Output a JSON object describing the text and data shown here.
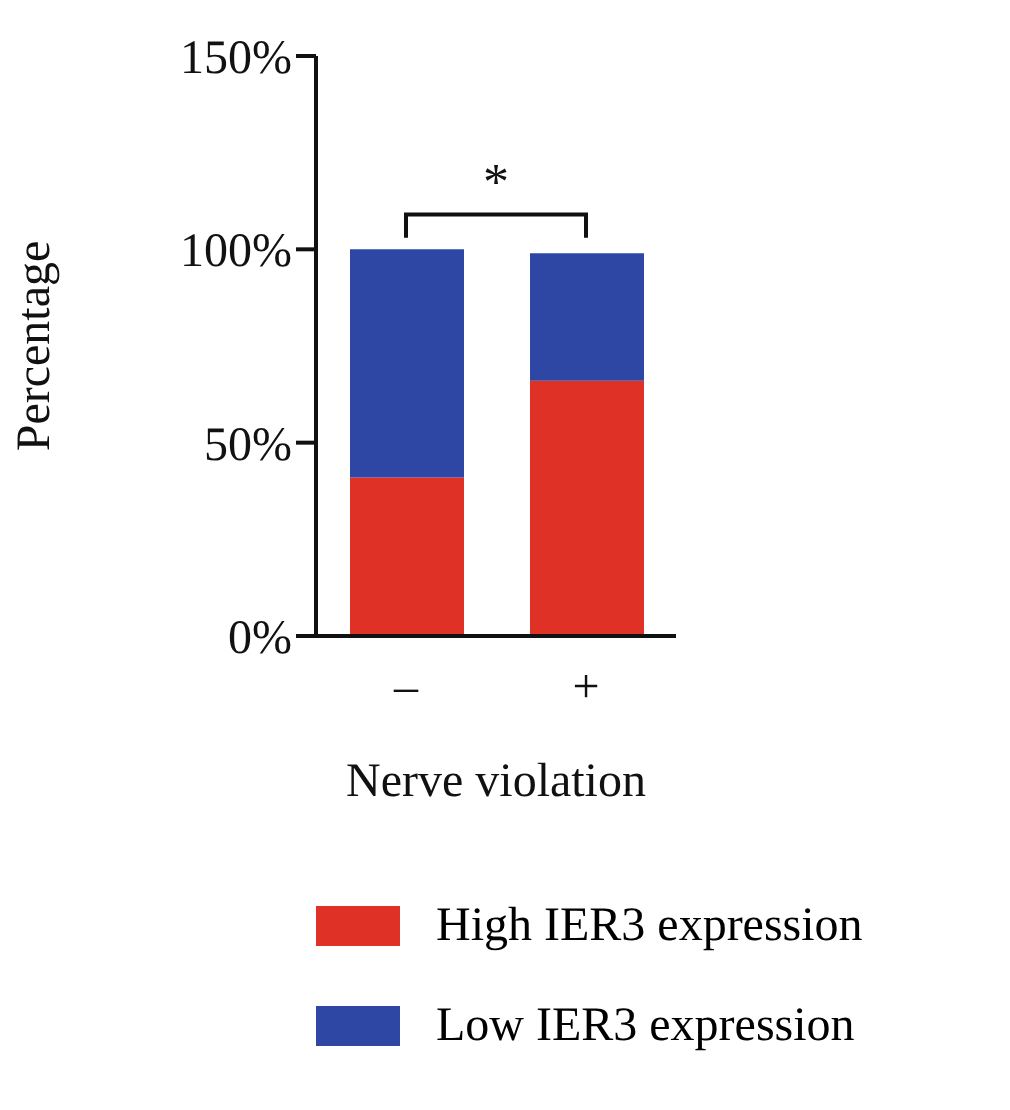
{
  "chart_data": {
    "type": "bar",
    "stacked": true,
    "categories": [
      "–",
      "+"
    ],
    "series": [
      {
        "name": "High IER3 expression",
        "color": "#e03127",
        "values": [
          41,
          66
        ]
      },
      {
        "name": "Low IER3 expression",
        "color": "#2e46a4",
        "values": [
          59,
          33
        ]
      }
    ],
    "ylim": [
      0,
      150
    ],
    "yticks": [
      {
        "value": 0,
        "label": "0%"
      },
      {
        "value": 50,
        "label": "50%"
      },
      {
        "value": 100,
        "label": "100%"
      },
      {
        "value": 150,
        "label": "150%"
      }
    ],
    "xlabel": "Nerve violation",
    "ylabel": "Percentage",
    "annotations": [
      "*"
    ],
    "legend": "bottom",
    "grid": false
  }
}
